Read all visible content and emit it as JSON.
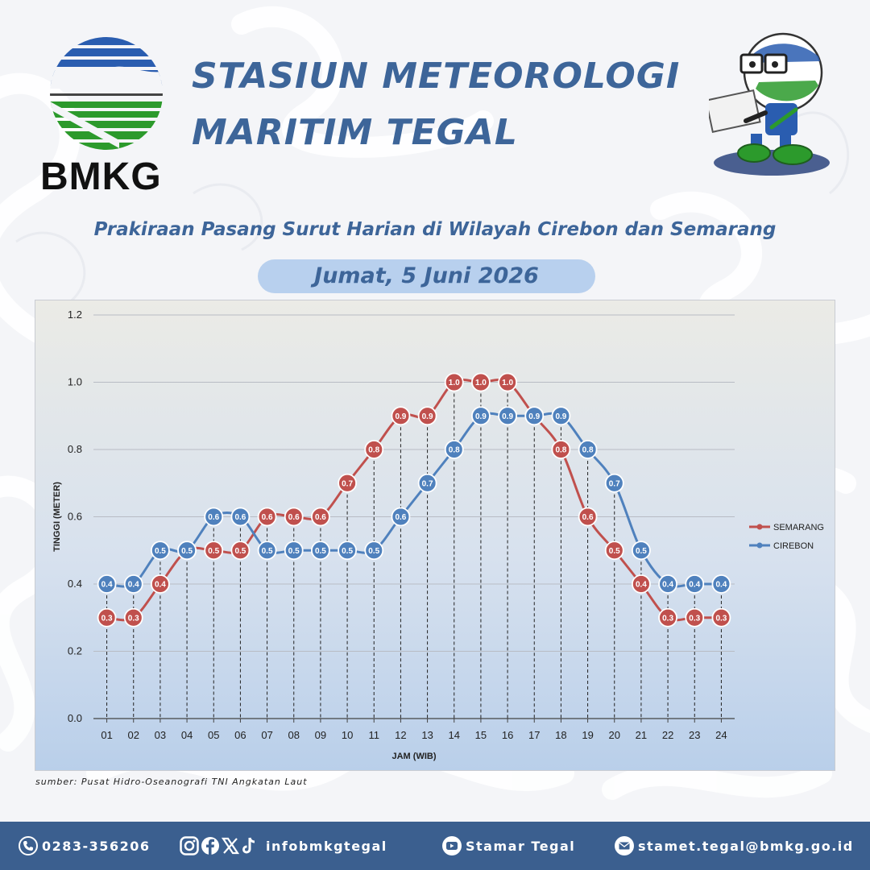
{
  "header": {
    "logo_text": "BMKG",
    "title_line1": "STASIUN METEOROLOGI",
    "title_line2": "MARITIM TEGAL"
  },
  "subtitle": "Prakiraan Pasang Surut Harian di Wilayah Cirebon dan Semarang",
  "date": "Jumat, 5 Juni 2026",
  "source": "sumber: Pusat Hidro-Oseanografi TNI Angkatan Laut",
  "footer": {
    "phone": "0283-356206",
    "social": "infobmkgtegal",
    "youtube": "Stamar Tegal",
    "email": "stamet.tegal@bmkg.go.id"
  },
  "colors": {
    "title": "#3d6599",
    "semarang": "#c0504d",
    "cirebon": "#4f81bd",
    "footer": "#3b5f8f",
    "pill": "#b8d0ee"
  },
  "chart_data": {
    "type": "line",
    "title": "",
    "xlabel": "JAM (WIB)",
    "ylabel": "TINGGI (METER)",
    "ylim": [
      0,
      1.2
    ],
    "yticks": [
      "0.0",
      "0.2",
      "0.4",
      "0.6",
      "0.8",
      "1.0",
      "1.2"
    ],
    "grid": true,
    "legend": "right",
    "categories": [
      "01",
      "02",
      "03",
      "04",
      "05",
      "06",
      "07",
      "08",
      "09",
      "10",
      "11",
      "12",
      "13",
      "14",
      "15",
      "16",
      "17",
      "18",
      "19",
      "20",
      "21",
      "22",
      "23",
      "24"
    ],
    "series": [
      {
        "name": "SEMARANG",
        "color": "#c0504d",
        "values": [
          0.3,
          0.3,
          0.4,
          0.5,
          0.5,
          0.5,
          0.6,
          0.6,
          0.6,
          0.7,
          0.8,
          0.9,
          0.9,
          1.0,
          1.0,
          1.0,
          0.9,
          0.8,
          0.6,
          0.5,
          0.4,
          0.3,
          0.3,
          0.3
        ]
      },
      {
        "name": "CIREBON",
        "color": "#4f81bd",
        "values": [
          0.4,
          0.4,
          0.5,
          0.5,
          0.6,
          0.6,
          0.5,
          0.5,
          0.5,
          0.5,
          0.5,
          0.6,
          0.7,
          0.8,
          0.9,
          0.9,
          0.9,
          0.9,
          0.8,
          0.7,
          0.5,
          0.4,
          0.4,
          0.4
        ]
      }
    ]
  }
}
